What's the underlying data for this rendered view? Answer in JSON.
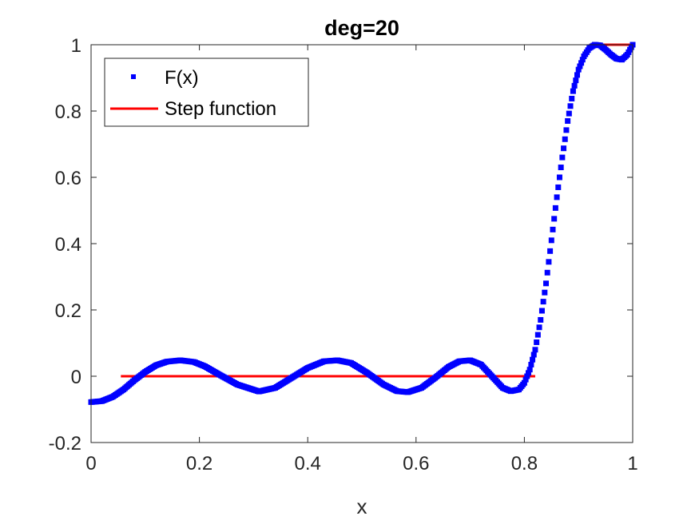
{
  "chart_data": {
    "type": "scatter",
    "title": "deg=20",
    "xlabel": "x",
    "ylabel": "",
    "xlim": [
      0,
      1
    ],
    "ylim": [
      -0.2,
      1
    ],
    "xticks": [
      "0",
      "0.2",
      "0.4",
      "0.6",
      "0.8",
      "1"
    ],
    "yticks": [
      "-0.2",
      "0",
      "0.2",
      "0.4",
      "0.6",
      "0.8",
      "1"
    ],
    "grid": false,
    "legend_position": "top-left",
    "series": [
      {
        "name": "F(x)",
        "kind": "marker",
        "color": "#0000ff",
        "x": [
          0.0,
          0.02,
          0.04,
          0.06,
          0.08,
          0.1,
          0.12,
          0.14,
          0.165,
          0.19,
          0.21,
          0.24,
          0.27,
          0.31,
          0.34,
          0.37,
          0.4,
          0.43,
          0.455,
          0.48,
          0.51,
          0.54,
          0.565,
          0.585,
          0.61,
          0.635,
          0.66,
          0.68,
          0.7,
          0.72,
          0.74,
          0.76,
          0.775,
          0.79,
          0.8,
          0.81,
          0.82,
          0.83,
          0.84,
          0.85,
          0.86,
          0.87,
          0.88,
          0.89,
          0.9,
          0.91,
          0.92,
          0.93,
          0.94,
          0.95,
          0.96,
          0.97,
          0.98,
          0.99,
          1.0
        ],
        "y": [
          -0.078,
          -0.075,
          -0.062,
          -0.04,
          -0.012,
          0.013,
          0.033,
          0.044,
          0.048,
          0.043,
          0.03,
          0.002,
          -0.025,
          -0.046,
          -0.035,
          -0.005,
          0.025,
          0.045,
          0.048,
          0.04,
          0.01,
          -0.025,
          -0.045,
          -0.048,
          -0.035,
          -0.005,
          0.028,
          0.045,
          0.048,
          0.035,
          0.0,
          -0.035,
          -0.045,
          -0.04,
          -0.02,
          0.02,
          0.08,
          0.17,
          0.28,
          0.41,
          0.54,
          0.66,
          0.77,
          0.86,
          0.925,
          0.965,
          0.99,
          1.0,
          0.998,
          0.985,
          0.97,
          0.958,
          0.955,
          0.97,
          1.0
        ]
      },
      {
        "name": "Step function",
        "kind": "line",
        "color": "#ff0000",
        "segments": [
          {
            "x": [
              0.055,
              0.82
            ],
            "y": [
              0,
              0
            ]
          },
          {
            "x": [
              0.92,
              1.0
            ],
            "y": [
              1,
              1
            ]
          }
        ]
      }
    ]
  }
}
